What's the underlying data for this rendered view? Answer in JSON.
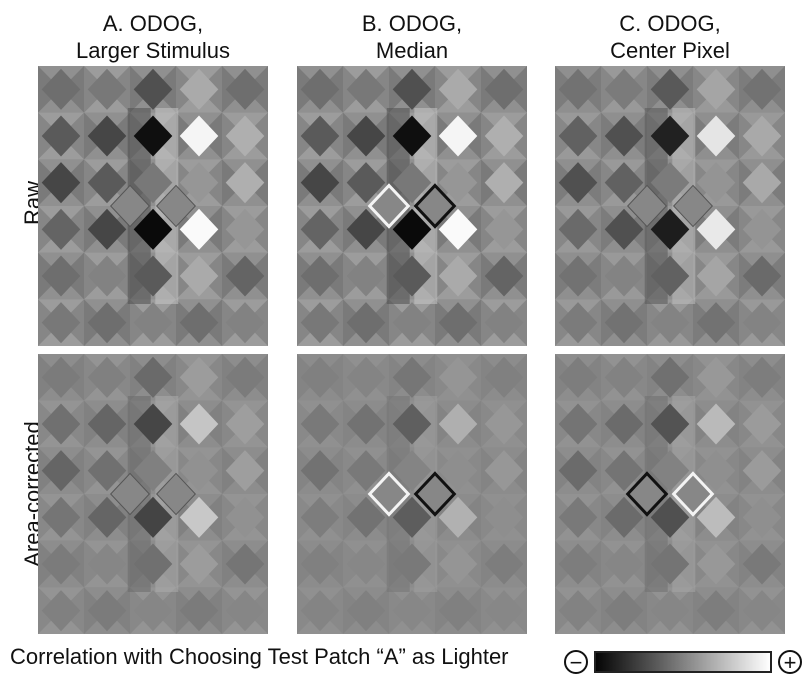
{
  "columns": [
    {
      "title_line1": "A. ODOG,",
      "title_line2": "Larger Stimulus"
    },
    {
      "title_line1": "B. ODOG,",
      "title_line2": "Median"
    },
    {
      "title_line1": "C. ODOG,",
      "title_line2": "Center Pixel"
    }
  ],
  "rows": [
    {
      "label": "Raw"
    },
    {
      "label": "Area-corrected"
    }
  ],
  "legend": {
    "caption": "Correlation with Choosing Test Patch “A” as Lighter",
    "minus_symbol": "−",
    "plus_symbol": "+",
    "low_color": "#050505",
    "high_color": "#ffffff"
  }
}
